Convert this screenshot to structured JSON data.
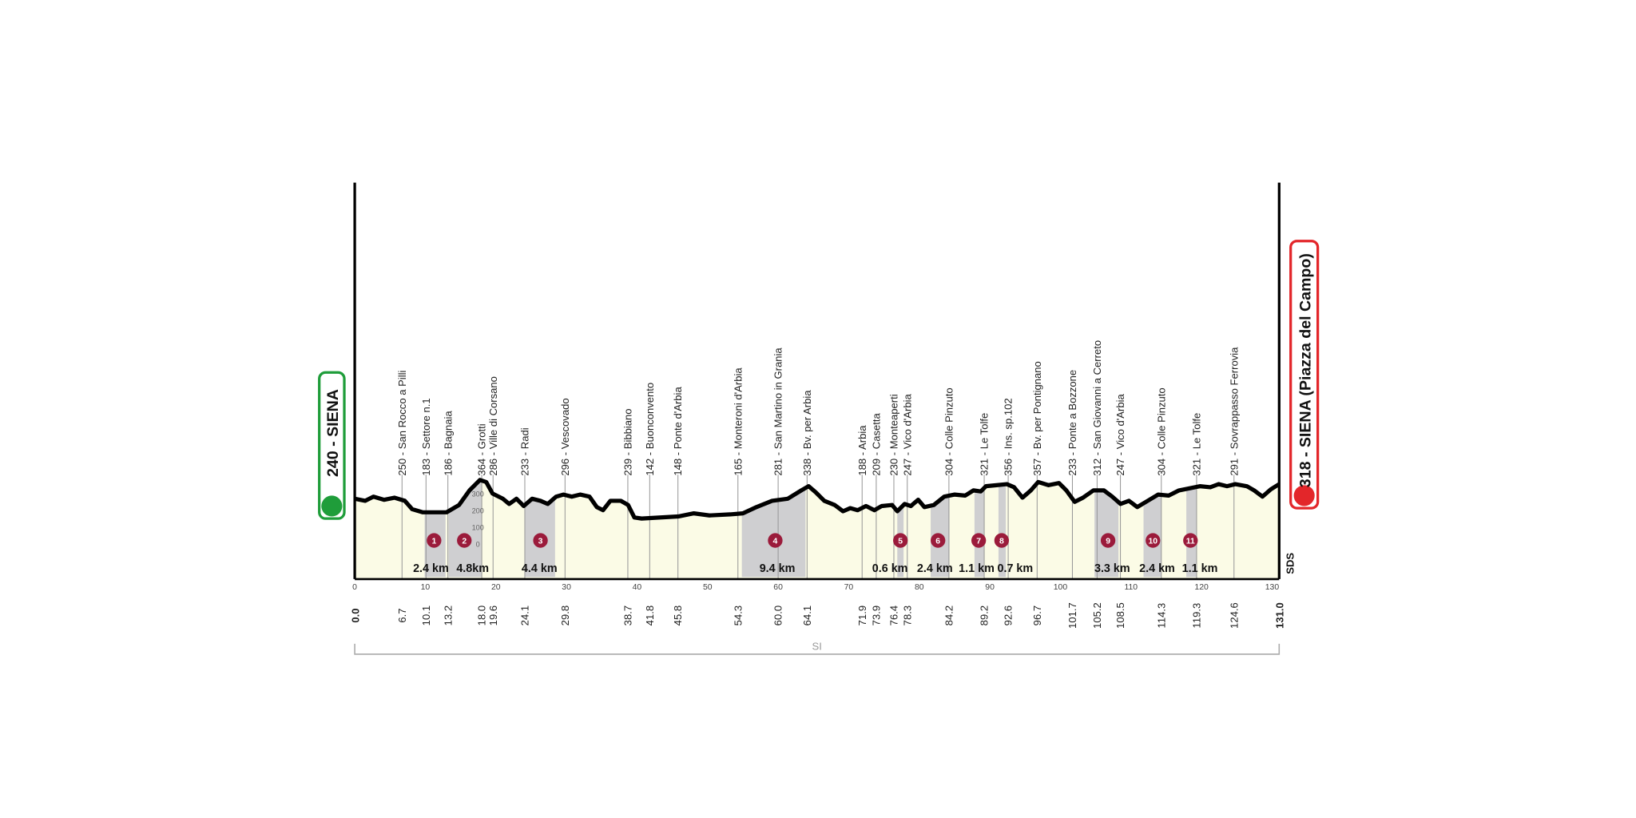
{
  "start": {
    "label": "240 - SIENA",
    "km": "0.0"
  },
  "finish": {
    "label": "318 - SIENA (Piazza del Campo)",
    "km": "131.0"
  },
  "waypoints": [
    {
      "label": "250 - San Rocco a Pilli",
      "km": "6.7"
    },
    {
      "label": "183 - Settore n.1",
      "km": "10.1"
    },
    {
      "label": "186 - Bagnaia",
      "km": "13.2"
    },
    {
      "label": "364 - Grotti",
      "km": "18.0"
    },
    {
      "label": "286 - Ville di Corsano",
      "km": "19.6"
    },
    {
      "label": "233 - Radi",
      "km": "24.1"
    },
    {
      "label": "296 - Vescovado",
      "km": "29.8"
    },
    {
      "label": "239 - Bibbiano",
      "km": "38.7"
    },
    {
      "label": "142 - Buonconvento",
      "km": "41.8"
    },
    {
      "label": "148 - Ponte d'Arbia",
      "km": "45.8"
    },
    {
      "label": "165 - Monteroni d'Arbia",
      "km": "54.3"
    },
    {
      "label": "281 - San Martino in Grania",
      "km": "60.0"
    },
    {
      "label": "338 - Bv. per Arbia",
      "km": "64.1"
    },
    {
      "label": "188 - Arbia",
      "km": "71.9"
    },
    {
      "label": "209 - Casetta",
      "km": "73.9"
    },
    {
      "label": "230 - Monteaperti",
      "km": "76.4"
    },
    {
      "label": "247 - Vico d'Arbia",
      "km": "78.3"
    },
    {
      "label": "304 - Colle Pinzuto",
      "km": "84.2"
    },
    {
      "label": "321 - Le Tolfe",
      "km": "89.2"
    },
    {
      "label": "356 - Ins. sp.102",
      "km": "92.6"
    },
    {
      "label": "357 - Bv. per Pontignano",
      "km": "96.7"
    },
    {
      "label": "233 - Ponte a Bozzone",
      "km": "101.7"
    },
    {
      "label": "312 - San Giovanni a Cerreto",
      "km": "105.2"
    },
    {
      "label": "247 - Vico d'Arbia",
      "km": "108.5"
    },
    {
      "label": "304 - Colle Pinzuto",
      "km": "114.3"
    },
    {
      "label": "321 - Le Tolfe",
      "km": "119.3"
    },
    {
      "label": "291 - Sovrappasso Ferrovia",
      "km": "124.6"
    }
  ],
  "sectors": [
    {
      "number": "1",
      "length": "2.4 km"
    },
    {
      "number": "2",
      "length": "4.8km"
    },
    {
      "number": "3",
      "length": "4.4 km"
    },
    {
      "number": "4",
      "length": "9.4 km"
    },
    {
      "number": "5",
      "length": "0.6 km"
    },
    {
      "number": "6",
      "length": "2.4 km"
    },
    {
      "number": "7",
      "length": "1.1 km"
    },
    {
      "number": "8",
      "length": "0.7 km"
    },
    {
      "number": "9",
      "length": "3.3 km"
    },
    {
      "number": "10",
      "length": "2.4 km"
    },
    {
      "number": "11",
      "length": "1.1 km"
    }
  ],
  "x_ticks": [
    "0",
    "10",
    "20",
    "30",
    "40",
    "50",
    "60",
    "70",
    "80",
    "90",
    "100",
    "110",
    "120",
    "130"
  ],
  "altitude_ticks": [
    "300",
    "200",
    "100",
    "0"
  ],
  "region": "SI",
  "side_label": "SDS"
}
